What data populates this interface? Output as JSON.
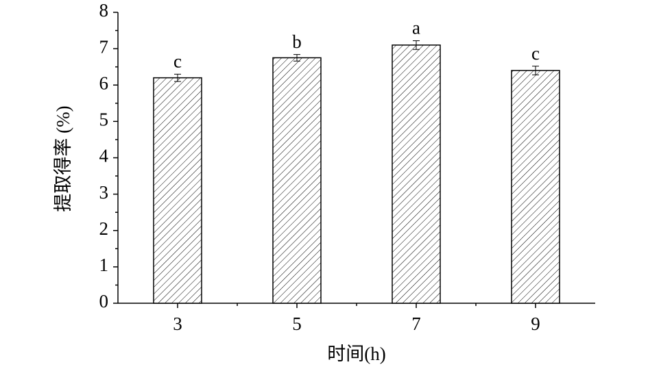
{
  "chart_data": {
    "type": "bar",
    "x_label": "时间(h)",
    "y_label": "提取得率 (%)",
    "categories": [
      "3",
      "5",
      "7",
      "9"
    ],
    "values": [
      6.2,
      6.75,
      7.1,
      6.4
    ],
    "errors": [
      0.1,
      0.09,
      0.12,
      0.12
    ],
    "annotations": [
      "c",
      "b",
      "a",
      "c"
    ],
    "color": "#000000",
    "ylim": [
      0,
      8
    ],
    "yticks": [
      0,
      1,
      2,
      3,
      4,
      5,
      6,
      7,
      8
    ],
    "grid": false
  }
}
